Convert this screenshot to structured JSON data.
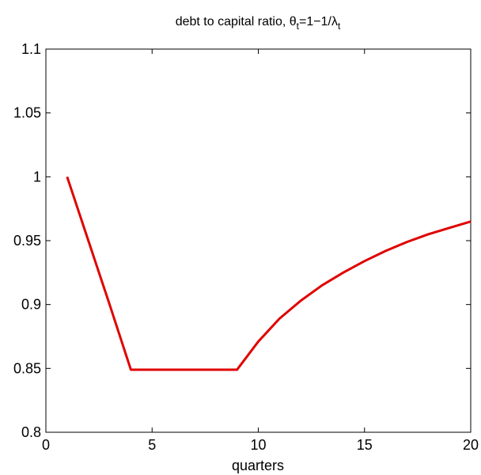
{
  "chart_data": {
    "type": "line",
    "title": [
      "debt to capital ratio,  θ",
      "t",
      "=1−1/λ",
      "t"
    ],
    "xlabel": "quarters",
    "x": [
      1,
      2,
      3,
      4,
      5,
      6,
      7,
      8,
      9,
      10,
      11,
      12,
      13,
      14,
      15,
      16,
      17,
      18,
      19,
      20
    ],
    "series": [
      {
        "color": "#e00000",
        "values": [
          1.0,
          0.95,
          0.9,
          0.849,
          0.849,
          0.849,
          0.849,
          0.849,
          0.849,
          0.871,
          0.889,
          0.903,
          0.915,
          0.925,
          0.934,
          0.942,
          0.949,
          0.955,
          0.96,
          0.965
        ]
      }
    ],
    "xlim": [
      0,
      20
    ],
    "xticks": [
      0,
      5,
      10,
      15,
      20
    ],
    "ylim": [
      0.8,
      1.1
    ],
    "yticks": [
      0.8,
      0.85,
      0.9,
      0.95,
      1,
      1.05,
      1.1
    ],
    "grid": false
  }
}
